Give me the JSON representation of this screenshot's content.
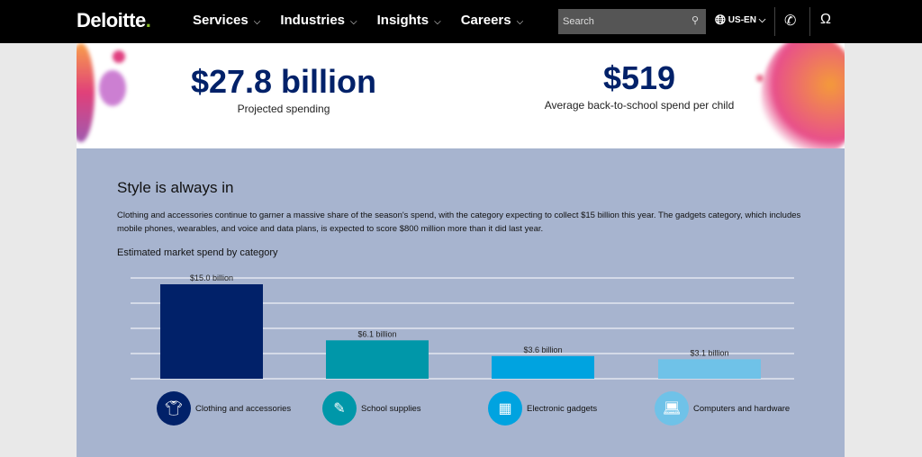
{
  "nav": {
    "logo": "Deloitte",
    "logo_dot": ".",
    "menu": [
      "Services",
      "Industries",
      "Insights",
      "Careers"
    ],
    "search_placeholder": "Search",
    "lang": "US-EN"
  },
  "hero": {
    "stat1_value": "$27.8 billion",
    "stat1_label": "Projected spending",
    "stat2_value": "$519",
    "stat2_label": "Average back-to-school spend per child"
  },
  "section": {
    "title": "Style is always in",
    "paragraph": "Clothing and accessories continue to garner a massive share of the season's spend, with the category expecting to collect $15 billion this year. The gadgets category, which includes mobile phones, wearables, and voice and data plans, is expected to score $800 million more than it did last year."
  },
  "chart_data": {
    "type": "bar",
    "title": "Estimated market spend by category",
    "categories": [
      "Clothing and accessories",
      "School supplies",
      "Electronic gadgets",
      "Computers and hardware"
    ],
    "values": [
      15.0,
      6.1,
      3.6,
      3.1
    ],
    "labels": [
      "$15.0 billion",
      "$6.1 billion",
      "$3.6 billion",
      "$3.1 billion"
    ],
    "colors": [
      "#012169",
      "#0097a9",
      "#00a3e0",
      "#6fc2e8"
    ],
    "icons": [
      "tshirt-icon",
      "pencil-icon",
      "calculator-icon",
      "laptop-icon"
    ],
    "ylim": [
      0,
      16
    ],
    "grid": true,
    "ylabel": "",
    "xlabel": ""
  }
}
